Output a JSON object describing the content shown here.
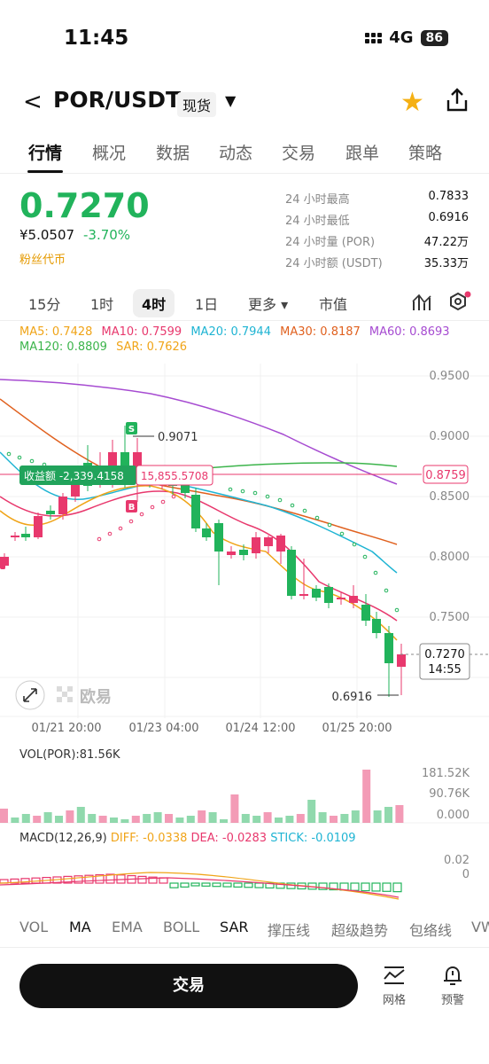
{
  "status": {
    "time": "11:45",
    "network": "4G",
    "battery": "86"
  },
  "nav": {
    "back_glyph": "<",
    "pair": "POR/USDT",
    "market_type": "现货",
    "dropdown_glyph": "▼",
    "star_glyph": "★"
  },
  "tabs": [
    "行情",
    "概况",
    "数据",
    "动态",
    "交易",
    "跟单",
    "策略"
  ],
  "ticker": {
    "price": "0.7270",
    "cny": "¥5.0507",
    "change": "-3.70%",
    "tag": "粉丝代币",
    "stats": [
      {
        "label": "24 小时最高",
        "value": "0.7833"
      },
      {
        "label": "24 小时最低",
        "value": "0.6916"
      },
      {
        "label": "24 小时量 (POR)",
        "value": "47.22万"
      },
      {
        "label": "24 小时额 (USDT)",
        "value": "35.33万"
      }
    ]
  },
  "periods": [
    "15分",
    "1时",
    "4时",
    "1日",
    "更多 ▾",
    "市值"
  ],
  "ma_legend": [
    {
      "text": "MA5: 0.7428",
      "color": "#f0a418"
    },
    {
      "text": "MA10: 0.7599",
      "color": "#e8386d"
    },
    {
      "text": "MA20: 0.7944",
      "color": "#1fb4d3"
    },
    {
      "text": "MA30: 0.8187",
      "color": "#e0611f"
    },
    {
      "text": "MA60: 0.8693",
      "color": "#a64bd1"
    },
    {
      "text": "MA120: 0.8809",
      "color": "#3cb44b"
    },
    {
      "text": "SAR: 0.7626",
      "color": "#f0a418"
    }
  ],
  "chart": {
    "y_ticks": [
      "0.9500",
      "0.9000",
      "0.8500",
      "0.8000",
      "0.7500"
    ],
    "x_ticks": [
      "01/21 20:00",
      "01/23 04:00",
      "01/24 12:00",
      "01/25 20:00"
    ],
    "high_marker": "0.9071",
    "low_marker": "0.6916",
    "profit_label": "收益额 -2,339.4158",
    "entry_price": "15,855.5708",
    "line_price": "0.8759",
    "last_price": "0.7270",
    "countdown": "14:55",
    "buy_marker": "B",
    "sell_marker": "S",
    "watermark": "欧易"
  },
  "volume": {
    "label": "VOL(POR):81.56K",
    "ticks": [
      "181.52K",
      "90.76K",
      "0.000"
    ]
  },
  "macd": {
    "label": "MACD(12,26,9)",
    "diff": "DIFF: -0.0338",
    "dea": "DEA: -0.0283",
    "stick": "STICK: -0.0109",
    "ticks": [
      "0.02",
      "0"
    ]
  },
  "indicators": [
    "VOL",
    "MA",
    "EMA",
    "BOLL",
    "SAR",
    "撑压线",
    "超级趋势",
    "包络线",
    "VW"
  ],
  "bottom": {
    "trade": "交易",
    "grid": "网格",
    "alert": "预警"
  }
}
